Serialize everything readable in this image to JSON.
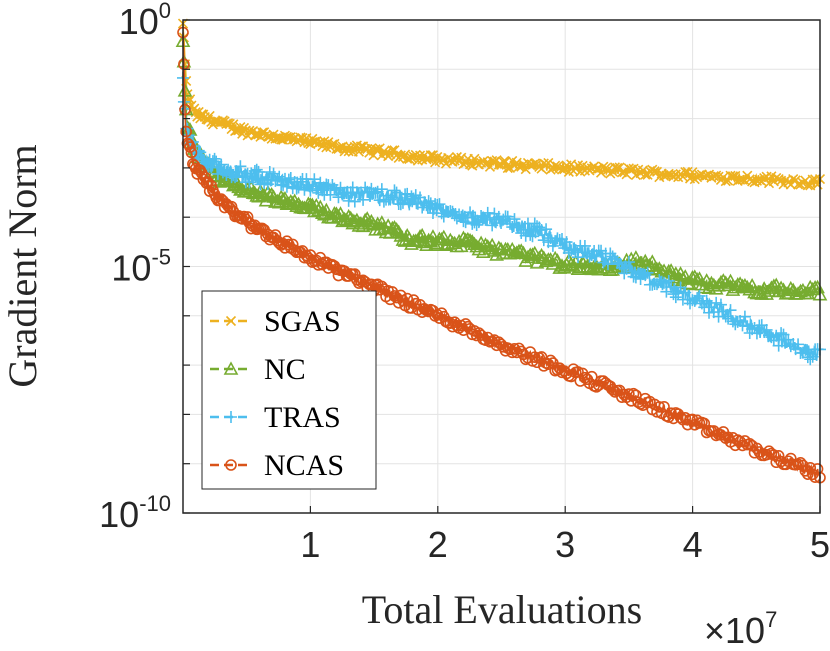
{
  "chart_data": {
    "type": "line",
    "title": "",
    "xlabel": "Total Evaluations",
    "ylabel": "Gradient Norm",
    "x_multiplier_label": "×10",
    "x_multiplier_exp": "7",
    "xlim": [
      0,
      50000000
    ],
    "ylim": [
      1e-10,
      1
    ],
    "yscale": "log",
    "grid": true,
    "legend_position": "bottom-left",
    "x_ticks": [
      {
        "value": 10000000,
        "label": "1"
      },
      {
        "value": 20000000,
        "label": "2"
      },
      {
        "value": 30000000,
        "label": "3"
      },
      {
        "value": 40000000,
        "label": "4"
      },
      {
        "value": 50000000,
        "label": "5"
      }
    ],
    "y_ticks": [
      {
        "value": 1,
        "base": "10",
        "exp": "0"
      },
      {
        "value": 1e-05,
        "base": "10",
        "exp": "-5"
      },
      {
        "value": 1e-10,
        "base": "10",
        "exp": "-10"
      }
    ],
    "series": [
      {
        "name": "SGAS",
        "color": "#EDB120",
        "marker": "x",
        "x": [
          0,
          300000,
          1000000,
          3000000,
          5000000,
          8000000,
          12000000,
          16000000,
          20000000,
          25000000,
          30000000,
          35000000,
          40000000,
          45000000,
          50000000
        ],
        "y": [
          0.8,
          0.03,
          0.012,
          0.008,
          0.0055,
          0.004,
          0.0027,
          0.002,
          0.0015,
          0.0012,
          0.001,
          0.00085,
          0.0007,
          0.0006,
          0.0005
        ],
        "noise": 0.08
      },
      {
        "name": "NC",
        "color": "#77AC30",
        "marker": "triangle",
        "x": [
          0,
          300000,
          1000000,
          3000000,
          5000000,
          8000000,
          12000000,
          16000000,
          18000000,
          22000000,
          26000000,
          30000000,
          34000000,
          36000000,
          38000000,
          40000000,
          45000000,
          50000000
        ],
        "y": [
          0.3,
          0.008,
          0.002,
          0.0006,
          0.00035,
          0.0002,
          0.00011,
          6e-05,
          3.5e-05,
          3e-05,
          1.8e-05,
          1.1e-05,
          1e-05,
          1.3e-05,
          7e-06,
          5e-06,
          3.5e-06,
          3e-06
        ],
        "noise": 0.1
      },
      {
        "name": "TRAS",
        "color": "#4DBEEE",
        "marker": "plus",
        "x": [
          0,
          300000,
          1000000,
          2000000,
          5000000,
          9000000,
          13000000,
          17000000,
          21000000,
          25000000,
          28000000,
          30000000,
          34000000,
          38000000,
          42000000,
          46000000,
          50000000
        ],
        "y": [
          0.05,
          0.005,
          0.002,
          0.0012,
          0.0007,
          0.0005,
          0.0003,
          0.00025,
          0.00012,
          8e-05,
          5e-05,
          2.5e-05,
          1.2e-05,
          4e-06,
          1.3e-06,
          4e-07,
          1.5e-07
        ],
        "noise": 0.15
      },
      {
        "name": "NCAS",
        "color": "#D95319",
        "marker": "circle",
        "x": [
          0,
          200000,
          800000,
          2000000,
          4000000,
          7000000,
          10000000,
          14000000,
          18000000,
          22000000,
          26000000,
          30000000,
          34000000,
          38000000,
          42000000,
          46000000,
          50000000
        ],
        "y": [
          0.7,
          0.005,
          0.0012,
          0.0004,
          0.00012,
          4e-05,
          1.5e-05,
          5e-06,
          1.7e-06,
          6e-07,
          2e-07,
          8e-08,
          3e-08,
          1.1e-08,
          4e-09,
          1.5e-09,
          6e-10
        ],
        "noise": 0.1
      }
    ]
  }
}
